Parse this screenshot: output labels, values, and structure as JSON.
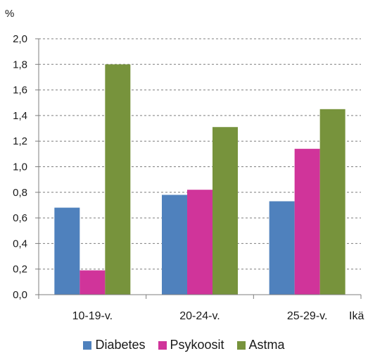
{
  "chart_data": {
    "type": "bar",
    "y_unit": "%",
    "xlabel": "Ikä",
    "categories": [
      "10-19-v.",
      "20-24-v.",
      "25-29-v."
    ],
    "series": [
      {
        "name": "Diabetes",
        "color": "#4F81BD",
        "values": [
          0.68,
          0.78,
          0.73
        ]
      },
      {
        "name": "Psykoosit",
        "color": "#D0349A",
        "values": [
          0.19,
          0.82,
          1.14
        ]
      },
      {
        "name": "Astma",
        "color": "#77933C",
        "values": [
          1.8,
          1.31,
          1.45
        ]
      }
    ],
    "ylim": [
      0.0,
      2.0
    ],
    "yticks": [
      "0,0",
      "0,2",
      "0,4",
      "0,6",
      "0,8",
      "1,0",
      "1,2",
      "1,4",
      "1,6",
      "1,8",
      "2,0"
    ],
    "grid": "horizontal dashed",
    "legend_position": "bottom"
  }
}
